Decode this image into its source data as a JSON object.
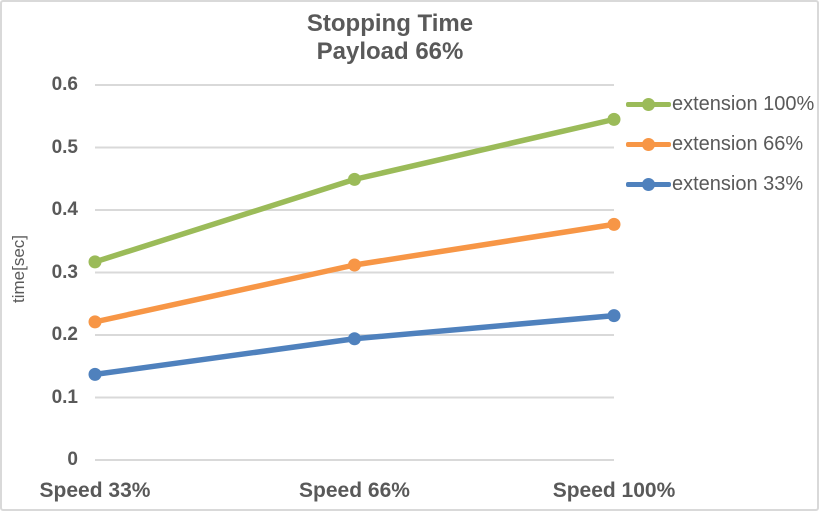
{
  "chart_data": {
    "type": "line",
    "title": "Stopping Time",
    "subtitle": "Payload 66%",
    "ylabel": "time[sec]",
    "xlabel": "",
    "categories": [
      "Speed 33%",
      "Speed 66%",
      "Speed 100%"
    ],
    "series": [
      {
        "name": "extension 100%",
        "color": "#9BBB59",
        "values": [
          0.317,
          0.449,
          0.545
        ]
      },
      {
        "name": "extension 66%",
        "color": "#F79646",
        "values": [
          0.221,
          0.312,
          0.377
        ]
      },
      {
        "name": "extension 33%",
        "color": "#4F81BD",
        "values": [
          0.137,
          0.194,
          0.231
        ]
      }
    ],
    "ylim": [
      0,
      0.6
    ],
    "yticks": [
      0,
      0.1,
      0.2,
      0.3,
      0.4,
      0.5,
      0.6
    ],
    "ytick_labels": [
      "0",
      "0.1",
      "0.2",
      "0.3",
      "0.4",
      "0.5",
      "0.6"
    ],
    "grid": true,
    "legend_position": "right",
    "marker": "circle",
    "colors": {
      "text": "#595959",
      "grid": "#D9D9D9",
      "border": "#D9D9D9",
      "background": "#FFFFFF"
    }
  }
}
